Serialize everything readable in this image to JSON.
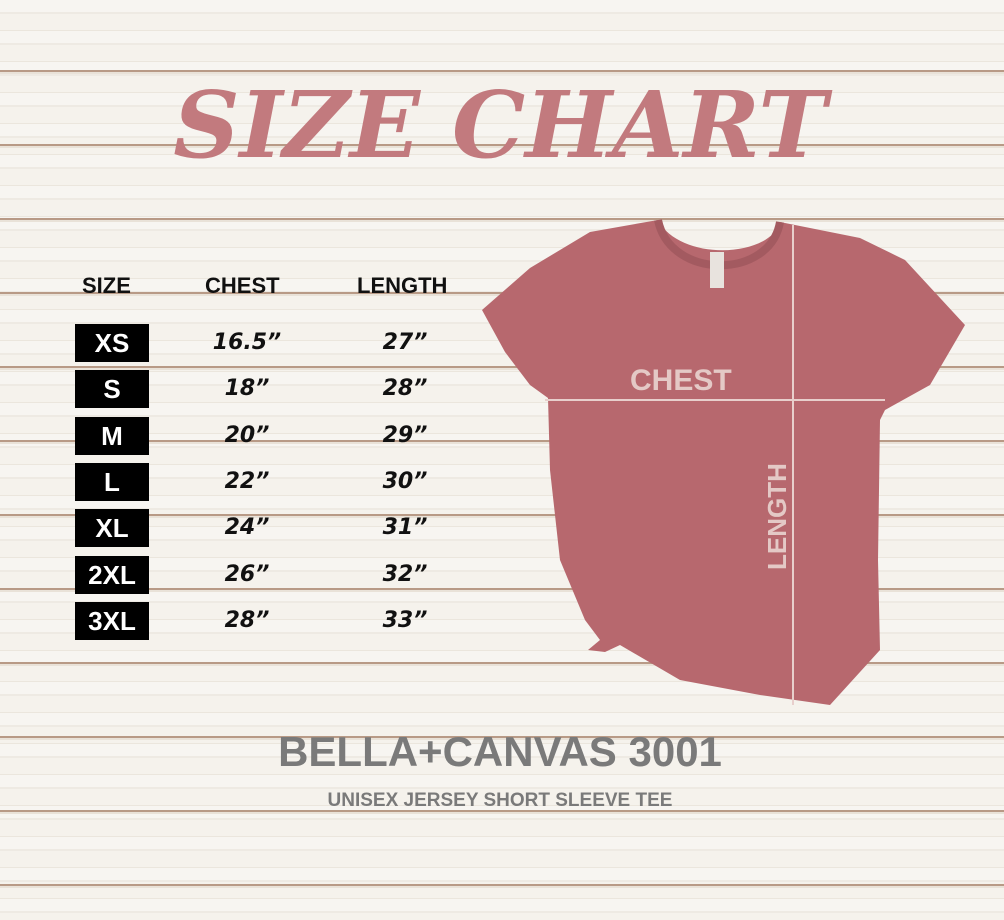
{
  "title": "SIZE CHART",
  "table": {
    "headers": [
      "SIZE",
      "CHEST",
      "LENGTH"
    ],
    "rows": [
      {
        "size": "XS",
        "chest": "16.5”",
        "length": "27”"
      },
      {
        "size": "S",
        "chest": "18”",
        "length": "28”"
      },
      {
        "size": "M",
        "chest": "20”",
        "length": "29”"
      },
      {
        "size": "L",
        "chest": "22”",
        "length": "30”"
      },
      {
        "size": "XL",
        "chest": "24”",
        "length": "31”"
      },
      {
        "size": "2XL",
        "chest": "26”",
        "length": "32”"
      },
      {
        "size": "3XL",
        "chest": "28”",
        "length": "33”"
      }
    ]
  },
  "shirt": {
    "chest_label": "CHEST",
    "length_label": "LENGTH",
    "color": "#b7686e"
  },
  "brand": "BELLA+CANVAS 3001",
  "subtitle": "UNISEX JERSEY SHORT SLEEVE TEE",
  "colors": {
    "title": "#c27a7e",
    "badge": "#000000",
    "brand": "#7a7a7a"
  }
}
